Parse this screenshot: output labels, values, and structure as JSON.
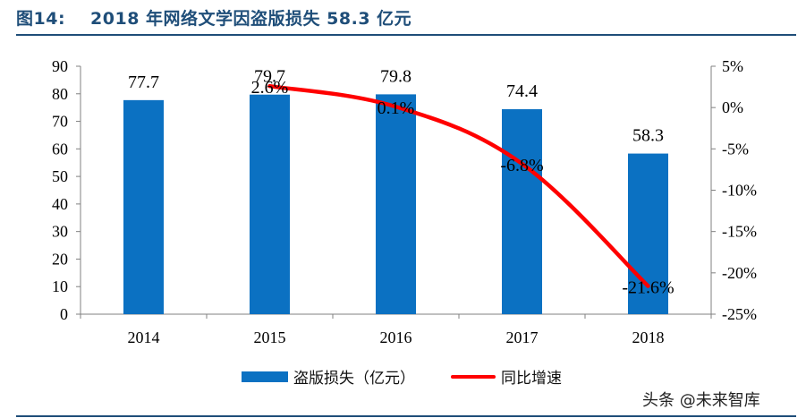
{
  "figure": {
    "number": "图14:",
    "title": "2018 年网络文学因盗版损失 58.3 亿元"
  },
  "watermark": "头条 @未来智库",
  "colors": {
    "bar": "#0b71c2",
    "line": "#ff0000",
    "title": "#1f4e79"
  },
  "chart_data": {
    "type": "bar",
    "categories": [
      "2014",
      "2015",
      "2016",
      "2017",
      "2018"
    ],
    "series": [
      {
        "name": "盗版损失（亿元）",
        "type": "bar",
        "axis": "left",
        "values": [
          77.7,
          79.7,
          79.8,
          74.4,
          58.3
        ],
        "labels": [
          "77.7",
          "79.7",
          "79.8",
          "74.4",
          "58.3"
        ]
      },
      {
        "name": "同比增速",
        "type": "line",
        "axis": "right",
        "x": [
          "2015",
          "2016",
          "2017",
          "2018"
        ],
        "values": [
          2.6,
          0.1,
          -6.8,
          -21.6
        ],
        "labels": [
          "2.6%",
          "0.1%",
          "-6.8%",
          "-21.6%"
        ]
      }
    ],
    "y_left": {
      "range": [
        0,
        90
      ],
      "ticks": [
        "0",
        "10",
        "20",
        "30",
        "40",
        "50",
        "60",
        "70",
        "80",
        "90"
      ]
    },
    "y_right": {
      "range": [
        -25,
        5
      ],
      "ticks": [
        "5%",
        "0%",
        "-5%",
        "-10%",
        "-15%",
        "-20%",
        "-25%"
      ]
    },
    "grid": false,
    "legend": "bottom"
  }
}
